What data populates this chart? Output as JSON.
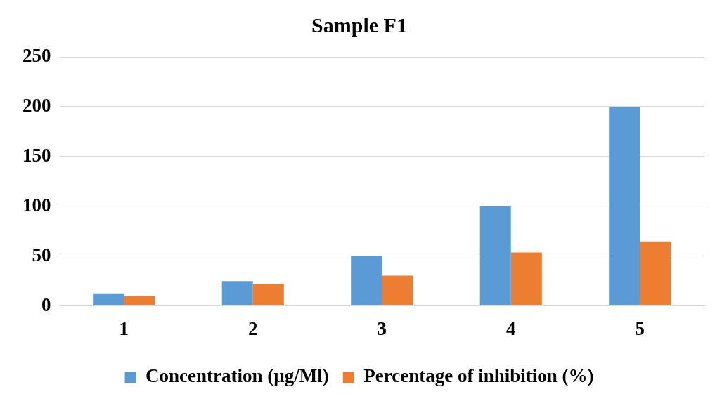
{
  "chart_data": {
    "type": "bar",
    "title": "Sample F1",
    "categories": [
      "1",
      "2",
      "3",
      "4",
      "5"
    ],
    "series": [
      {
        "name": "Concentration (µg/Ml)",
        "color": "#5b9bd5",
        "values": [
          12.5,
          25,
          50,
          100,
          200
        ]
      },
      {
        "name": "Percentage of inhibition (%)",
        "color": "#ed7d31",
        "values": [
          10.3,
          21.9,
          30.4,
          53.6,
          64.7
        ]
      }
    ],
    "ylim": [
      0,
      250
    ],
    "yticks": [
      0,
      50,
      100,
      150,
      200,
      250
    ],
    "grid": "y",
    "legend": "bottom"
  }
}
